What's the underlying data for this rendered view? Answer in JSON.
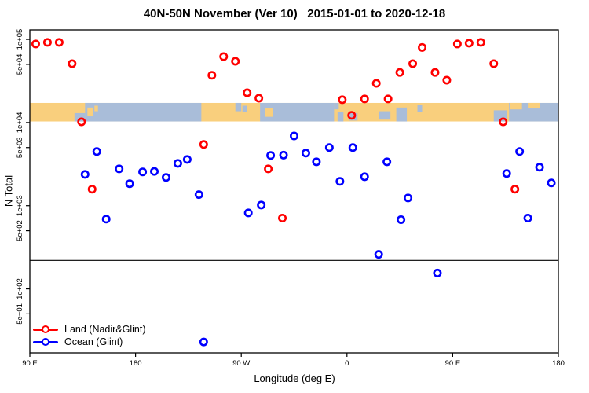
{
  "title": "40N-50N November (Ver 10)   2015-01-01 to 2020-12-18",
  "chart_data": {
    "type": "scatter",
    "title": "40N-50N November (Ver 10)   2015-01-01 to 2020-12-18",
    "xlabel": "Longitude (deg E)",
    "ylabel": "N Total",
    "grid": "off",
    "x_axis": {
      "note": "longitude axis spans 450 degrees starting at 90E, wrapping east through 180, 90W, 0, 90E to 180",
      "span_deg": 450,
      "ticks_deg": [
        0,
        90,
        180,
        270,
        360,
        450
      ],
      "tick_labels": [
        "90 E",
        "180",
        "90 W",
        "0",
        "90 E",
        "180"
      ]
    },
    "y_axis": {
      "scale": "log",
      "range": [
        17,
        130000
      ],
      "tick_values": [
        100000,
        50000,
        10000,
        5000,
        1000,
        500,
        100,
        50
      ],
      "tick_labels": [
        "1e+05",
        "5e+04",
        "1e+04",
        "5e+03",
        "1e+03",
        "5e+02",
        "1e+02",
        "5e+01"
      ]
    },
    "threshold_line": {
      "value": 220,
      "color": "#000000"
    },
    "point_style": {
      "shape": "open-circle",
      "radius_px": 4.2,
      "stroke_px": 2.6
    },
    "series": [
      {
        "name": "Land (Nadir&Glint)",
        "color": "#ff0000",
        "points_deg_n": [
          [
            5,
            88000
          ],
          [
            15,
            92000
          ],
          [
            25,
            92000
          ],
          [
            36,
            51000
          ],
          [
            44,
            10200
          ],
          [
            53,
            1580
          ],
          [
            148,
            5450
          ],
          [
            155,
            37000
          ],
          [
            165,
            62000
          ],
          [
            175,
            54500
          ],
          [
            185,
            22800
          ],
          [
            195,
            19600
          ],
          [
            203,
            2770
          ],
          [
            215,
            710
          ],
          [
            266,
            18800
          ],
          [
            274,
            12200
          ],
          [
            285,
            19200
          ],
          [
            295,
            29600
          ],
          [
            305,
            19200
          ],
          [
            315,
            40000
          ],
          [
            326,
            51000
          ],
          [
            334,
            80000
          ],
          [
            345,
            40000
          ],
          [
            355,
            32300
          ],
          [
            364,
            88000
          ],
          [
            374,
            90000
          ],
          [
            384,
            92000
          ],
          [
            395,
            51000
          ],
          [
            403,
            10200
          ],
          [
            413,
            1580
          ]
        ]
      },
      {
        "name": "Ocean (Glint)",
        "color": "#0000ff",
        "points_deg_n": [
          [
            47,
            2380
          ],
          [
            57,
            4480
          ],
          [
            65,
            690
          ],
          [
            76,
            2770
          ],
          [
            85,
            1840
          ],
          [
            96,
            2550
          ],
          [
            106,
            2580
          ],
          [
            116,
            2190
          ],
          [
            126,
            3230
          ],
          [
            134,
            3600
          ],
          [
            144,
            1360
          ],
          [
            148,
            23
          ],
          [
            186,
            820
          ],
          [
            197,
            1020
          ],
          [
            205,
            4020
          ],
          [
            216,
            4060
          ],
          [
            225,
            6900
          ],
          [
            235,
            4290
          ],
          [
            244,
            3370
          ],
          [
            255,
            5000
          ],
          [
            264,
            1960
          ],
          [
            275,
            5000
          ],
          [
            285,
            2230
          ],
          [
            297,
            260
          ],
          [
            304,
            3370
          ],
          [
            316,
            680
          ],
          [
            322,
            1240
          ],
          [
            347,
            155
          ],
          [
            406,
            2440
          ],
          [
            417,
            4480
          ],
          [
            424,
            710
          ],
          [
            434,
            2900
          ],
          [
            444,
            1880
          ]
        ]
      }
    ],
    "map_band": {
      "description": "40N-50N world map strip drawn across the plot",
      "value_top": 17200,
      "value_bottom": 10300,
      "land_color": "#f9cf7d",
      "ocean_color": "#a9bdd9",
      "base": "land",
      "ocean_segments_deg": [
        [
          47,
          146
        ],
        [
          196,
          259
        ],
        [
          408,
          450
        ]
      ],
      "features": [
        {
          "type": "ocean",
          "deg": [
            38,
            47
          ],
          "frac": [
            0.55,
            1
          ]
        },
        {
          "type": "land",
          "deg": [
            49,
            54
          ],
          "frac": [
            0.25,
            0.7
          ]
        },
        {
          "type": "land",
          "deg": [
            55,
            58
          ],
          "frac": [
            0.15,
            0.45
          ]
        },
        {
          "type": "ocean",
          "deg": [
            175,
            180
          ],
          "frac": [
            0,
            0.45
          ]
        },
        {
          "type": "ocean",
          "deg": [
            181,
            185
          ],
          "frac": [
            0.15,
            0.5
          ]
        },
        {
          "type": "land",
          "deg": [
            200,
            207
          ],
          "frac": [
            0.3,
            0.75
          ]
        },
        {
          "type": "ocean",
          "deg": [
            259,
            263
          ],
          "frac": [
            0,
            0.35
          ]
        },
        {
          "type": "ocean",
          "deg": [
            262,
            267
          ],
          "frac": [
            0.5,
            1
          ]
        },
        {
          "type": "ocean",
          "deg": [
            272,
            279
          ],
          "frac": [
            0.55,
            0.95
          ]
        },
        {
          "type": "ocean",
          "deg": [
            297,
            307
          ],
          "frac": [
            0.45,
            0.9
          ]
        },
        {
          "type": "ocean",
          "deg": [
            312,
            321
          ],
          "frac": [
            0.25,
            1
          ]
        },
        {
          "type": "ocean",
          "deg": [
            330,
            334
          ],
          "frac": [
            0.1,
            0.5
          ]
        },
        {
          "type": "ocean",
          "deg": [
            395,
            406
          ],
          "frac": [
            0.4,
            1
          ]
        },
        {
          "type": "land",
          "deg": [
            409,
            419
          ],
          "frac": [
            0,
            0.35
          ]
        },
        {
          "type": "land",
          "deg": [
            424,
            434
          ],
          "frac": [
            0,
            0.3
          ]
        }
      ]
    }
  },
  "legend": {
    "items": [
      {
        "label": "Land (Nadir&Glint)",
        "color": "#ff0000"
      },
      {
        "label": "Ocean (Glint)",
        "color": "#0000ff"
      }
    ]
  }
}
